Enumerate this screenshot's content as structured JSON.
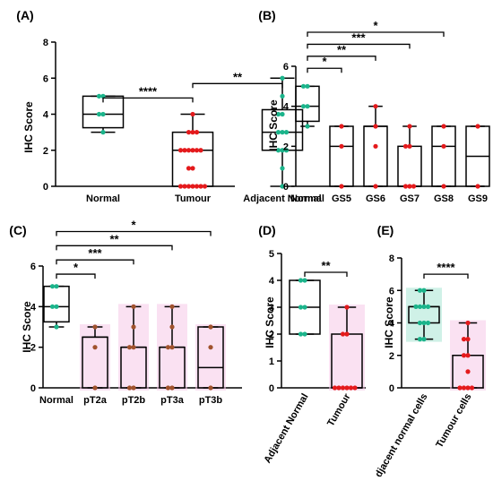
{
  "colors": {
    "red": "#e41a1c",
    "green": "#1bb48b",
    "brown": "#a0522d",
    "pink": "#f6c8e8",
    "teal_fill": "#9fe3cf",
    "black": "#000000"
  },
  "chart_data": [
    {
      "panel": "(A)",
      "type": "box",
      "ylabel": "IHC Score",
      "ylim": [
        0,
        8
      ],
      "yticks": [
        0,
        2,
        4,
        6,
        8
      ],
      "categories": [
        "Normal",
        "Tumour",
        "Adjacent Normal"
      ],
      "boxes": [
        {
          "min": 3,
          "q1": 3.25,
          "median": 4,
          "q3": 5,
          "max": 5,
          "points": [
            3,
            4,
            4,
            5,
            5
          ],
          "color": "green"
        },
        {
          "min": 0,
          "q1": 0,
          "median": 2,
          "q3": 3,
          "max": 4,
          "points": [
            0,
            0,
            0,
            0,
            0,
            0,
            0,
            1,
            1,
            2,
            2,
            2,
            2,
            2,
            2,
            3,
            3,
            3,
            4
          ],
          "color": "red"
        },
        {
          "min": 0,
          "q1": 2,
          "median": 3,
          "q3": 4.25,
          "max": 6,
          "points": [
            0,
            1,
            2,
            2,
            2,
            3,
            3,
            3,
            4,
            4,
            5,
            6
          ],
          "color": "green"
        }
      ],
      "significance": [
        {
          "from": 0,
          "to": 1,
          "label": "****",
          "y": 4.9
        },
        {
          "from": 1,
          "to": 2,
          "label": "**",
          "y": 5.7
        }
      ]
    },
    {
      "panel": "(B)",
      "type": "box",
      "ylabel": "IHC Score",
      "ylim": [
        0,
        6
      ],
      "yticks": [
        0,
        2,
        4,
        6
      ],
      "categories": [
        "Normal",
        "GS5",
        "GS6",
        "GS7",
        "GS8",
        "GS9"
      ],
      "boxes": [
        {
          "min": 3,
          "q1": 3.25,
          "median": 4,
          "q3": 5,
          "max": 5,
          "points": [
            3,
            4,
            4,
            5,
            5
          ],
          "color": "green"
        },
        {
          "min": 0,
          "q1": 0,
          "median": 2,
          "q3": 3,
          "max": 3,
          "points": [
            0,
            2,
            3
          ],
          "color": "red"
        },
        {
          "min": 0,
          "q1": 0,
          "median": 3,
          "q3": 3,
          "max": 4,
          "points": [
            0,
            2,
            3,
            4
          ],
          "color": "red"
        },
        {
          "min": 0,
          "q1": 0,
          "median": 0,
          "q3": 2,
          "max": 3,
          "points": [
            0,
            0,
            0,
            2,
            2,
            3
          ],
          "color": "red"
        },
        {
          "min": 0,
          "q1": 0,
          "median": 2,
          "q3": 3,
          "max": 3,
          "points": [
            0,
            2,
            3
          ],
          "color": "red"
        },
        {
          "min": 0,
          "q1": 0,
          "median": 1.5,
          "q3": 3,
          "max": 3,
          "points": [
            0,
            3
          ],
          "color": "red"
        }
      ],
      "significance": [
        {
          "from": 0,
          "to": 1,
          "label": "*",
          "y": 5.9
        },
        {
          "from": 0,
          "to": 2,
          "label": "**",
          "y": 6.5
        },
        {
          "from": 0,
          "to": 3,
          "label": "***",
          "y": 7.1
        },
        {
          "from": 0,
          "to": 4,
          "label": "*",
          "y": 7.7
        }
      ]
    },
    {
      "panel": "(C)",
      "type": "box",
      "ylabel": "IHC Score",
      "ylim": [
        0,
        6
      ],
      "yticks": [
        0,
        2,
        4,
        6
      ],
      "categories": [
        "Normal",
        "pT2a",
        "pT2b",
        "pT3a",
        "pT3b"
      ],
      "boxes": [
        {
          "min": 3,
          "q1": 3.25,
          "median": 4,
          "q3": 5,
          "max": 5,
          "points": [
            3,
            4,
            4,
            5,
            5
          ],
          "color": "green"
        },
        {
          "min": 0,
          "q1": 0,
          "median": 2.5,
          "q3": 2.5,
          "max": 3,
          "points": [
            0,
            2,
            3
          ],
          "color": "brown"
        },
        {
          "min": 0,
          "q1": 0,
          "median": 2,
          "q3": 2,
          "max": 4,
          "points": [
            0,
            0,
            2,
            2,
            3,
            4
          ],
          "color": "brown"
        },
        {
          "min": 0,
          "q1": 0,
          "median": 2,
          "q3": 2,
          "max": 4,
          "points": [
            0,
            0,
            2,
            2,
            3,
            4
          ],
          "color": "brown"
        },
        {
          "min": 0,
          "q1": 0,
          "median": 1,
          "q3": 3,
          "max": 3,
          "points": [
            0,
            2,
            3
          ],
          "color": "brown"
        }
      ],
      "significance": [
        {
          "from": 0,
          "to": 1,
          "label": "*",
          "y": 5.6
        },
        {
          "from": 0,
          "to": 2,
          "label": "***",
          "y": 6.3
        },
        {
          "from": 0,
          "to": 3,
          "label": "**",
          "y": 7
        },
        {
          "from": 0,
          "to": 4,
          "label": "*",
          "y": 7.7
        }
      ]
    },
    {
      "panel": "(D)",
      "type": "box",
      "ylabel": "IHC Score",
      "ylim": [
        0,
        5
      ],
      "yticks": [
        0,
        1,
        2,
        3,
        4,
        5
      ],
      "categories": [
        "Adjacent Normal",
        "Tumour"
      ],
      "boxes": [
        {
          "min": 2,
          "q1": 2,
          "median": 3,
          "q3": 4,
          "max": 4,
          "points": [
            2,
            2,
            3,
            3,
            4,
            4
          ],
          "color": "green"
        },
        {
          "min": 0,
          "q1": 0,
          "median": 0,
          "q3": 2,
          "max": 3,
          "points": [
            0,
            0,
            0,
            0,
            0,
            0,
            2,
            2,
            3
          ],
          "color": "red"
        }
      ],
      "significance": [
        {
          "from": 0,
          "to": 1,
          "label": "**",
          "y": 4.3
        }
      ]
    },
    {
      "panel": "(E)",
      "type": "box",
      "ylabel": "IHC Score",
      "ylim": [
        0,
        8
      ],
      "yticks": [
        0,
        2,
        4,
        6,
        8
      ],
      "categories": [
        "Adjacent normal cells",
        "Tumour cells"
      ],
      "boxes": [
        {
          "min": 3,
          "q1": 4,
          "median": 5,
          "q3": 5,
          "max": 6,
          "points": [
            3,
            3,
            4,
            4,
            4,
            5,
            5,
            5,
            5,
            6,
            6
          ],
          "color": "green"
        },
        {
          "min": 0,
          "q1": 0,
          "median": 2,
          "q3": 2,
          "max": 4,
          "points": [
            0,
            0,
            0,
            0,
            1,
            2,
            2,
            3,
            3,
            4
          ],
          "color": "red"
        }
      ],
      "significance": [
        {
          "from": 0,
          "to": 1,
          "label": "****",
          "y": 7
        }
      ]
    }
  ]
}
